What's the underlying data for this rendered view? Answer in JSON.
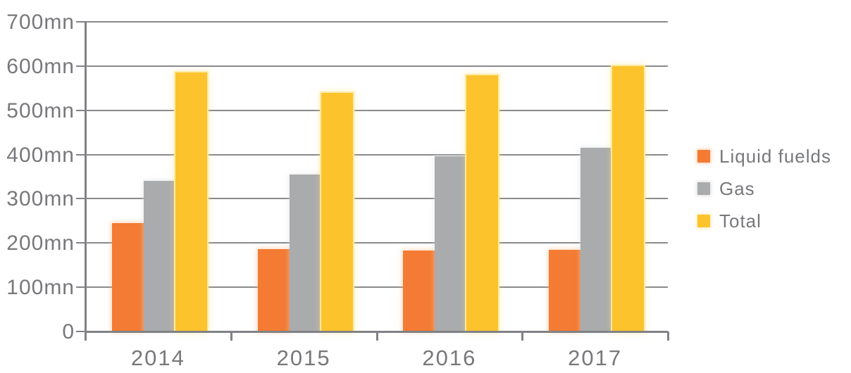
{
  "chart_data": {
    "type": "bar",
    "categories": [
      "2014",
      "2015",
      "2016",
      "2017"
    ],
    "series": [
      {
        "name": "Liquid fuelds",
        "color": "#F47B33",
        "values": [
          245,
          186,
          183,
          184
        ]
      },
      {
        "name": "Gas",
        "color": "#A9ABAD",
        "values": [
          340,
          354,
          396,
          416
        ]
      },
      {
        "name": "Total",
        "color": "#FCC32D",
        "values": [
          585,
          540,
          579,
          600
        ]
      }
    ],
    "yticks": [
      {
        "value": 0,
        "label": "0"
      },
      {
        "value": 100,
        "label": "100mn"
      },
      {
        "value": 200,
        "label": "200mn"
      },
      {
        "value": 300,
        "label": "300mn"
      },
      {
        "value": 400,
        "label": "400mn"
      },
      {
        "value": 500,
        "label": "500mn"
      },
      {
        "value": 600,
        "label": "600mn"
      },
      {
        "value": 700,
        "label": "700mn"
      }
    ],
    "ylim": [
      0,
      700
    ],
    "grid": true,
    "legend_position": "right"
  },
  "colors": {
    "axis": "#808285",
    "grid": "#898A8D",
    "text": "#77787B",
    "background": "#FFFFFF"
  }
}
